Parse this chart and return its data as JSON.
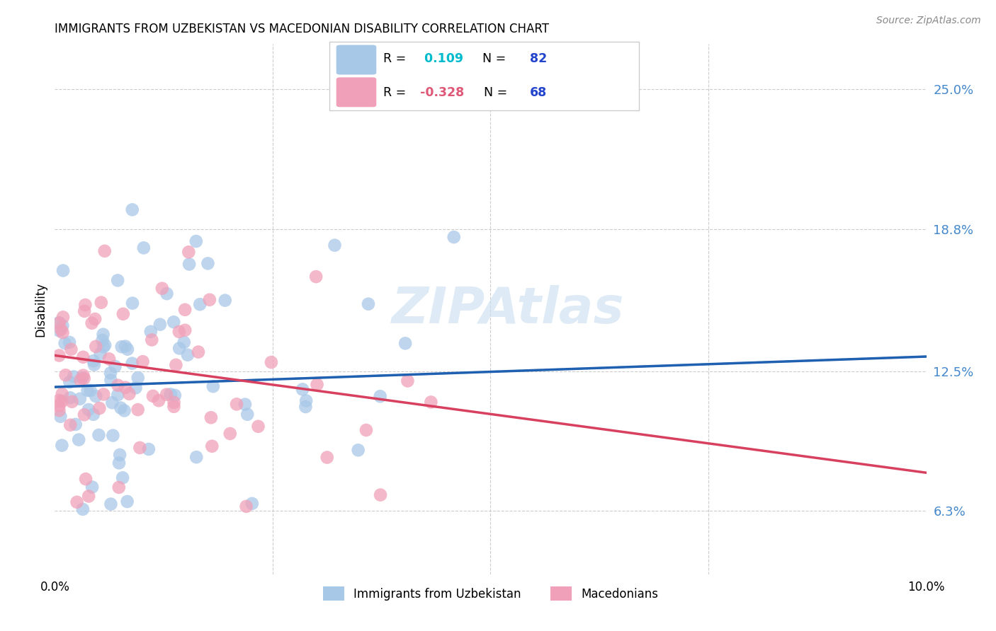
{
  "title": "IMMIGRANTS FROM UZBEKISTAN VS MACEDONIAN DISABILITY CORRELATION CHART",
  "source": "Source: ZipAtlas.com",
  "ylabel": "Disability",
  "xlim": [
    0.0,
    0.1
  ],
  "ylim": [
    0.035,
    0.27
  ],
  "scatter1_color": "#a8c8e8",
  "scatter2_color": "#f0a0b8",
  "line1_color": "#2060b0",
  "line2_color": "#d84060",
  "line1_dash_color": "#90bcd8",
  "background_color": "#ffffff",
  "grid_color": "#cccccc",
  "right_axis_color": "#4488cc",
  "ytick_vals": [
    0.063,
    0.125,
    0.188,
    0.25
  ],
  "ytick_labels": [
    "6.3%",
    "12.5%",
    "18.8%",
    "25.0%"
  ],
  "r1_val": "0.109",
  "r2_val": "-0.328",
  "n1": "82",
  "n2": "68",
  "r_color": "#00cccc",
  "r2_color": "#e05878",
  "n_color": "#2244cc",
  "watermark": "ZIPAtlas",
  "watermark_color": "#c8dff0",
  "legend1_label": "Immigrants from Uzbekistan",
  "legend2_label": "Macedonians"
}
